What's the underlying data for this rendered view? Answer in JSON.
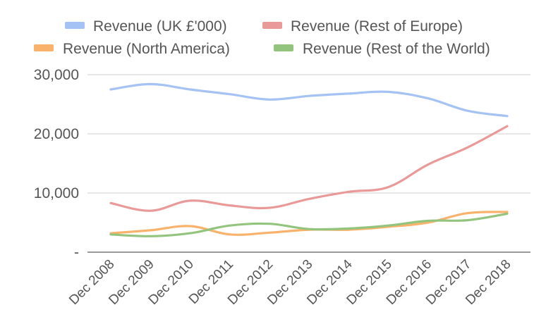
{
  "chart_data": {
    "type": "line",
    "categories": [
      "Dec 2008",
      "Dec 2009",
      "Dec 2010",
      "Dec 2011",
      "Dec 2012",
      "Dec 2013",
      "Dec 2014",
      "Dec 2015",
      "Dec 2016",
      "Dec 2017",
      "Dec 2018"
    ],
    "series": [
      {
        "name": "Revenue (UK £'000)",
        "color": "#a4c2f4",
        "values": [
          27500,
          28400,
          27500,
          26700,
          25800,
          26400,
          26800,
          27100,
          26000,
          23900,
          23000
        ]
      },
      {
        "name": "Revenue (Rest of Europe)",
        "color": "#ea9999",
        "values": [
          8300,
          7000,
          8700,
          7900,
          7500,
          9000,
          10200,
          11000,
          14800,
          17700,
          21300
        ]
      },
      {
        "name": "Revenue (North America)",
        "color": "#f9b26b",
        "values": [
          3200,
          3700,
          4400,
          3000,
          3300,
          3800,
          3800,
          4300,
          5000,
          6600,
          6800
        ]
      },
      {
        "name": "Revenue (Rest of the World)",
        "color": "#93c47d",
        "values": [
          3000,
          2700,
          3200,
          4500,
          4800,
          3900,
          4000,
          4500,
          5300,
          5400,
          6500
        ]
      }
    ],
    "ylim": [
      0,
      30000
    ],
    "y_ticks": [
      0,
      10000,
      20000,
      30000
    ],
    "y_tick_labels": [
      "-",
      "10,000",
      "20,000",
      "30,000"
    ],
    "grid": true,
    "legend_position": "top",
    "xlabel": "",
    "ylabel": "",
    "title": ""
  }
}
